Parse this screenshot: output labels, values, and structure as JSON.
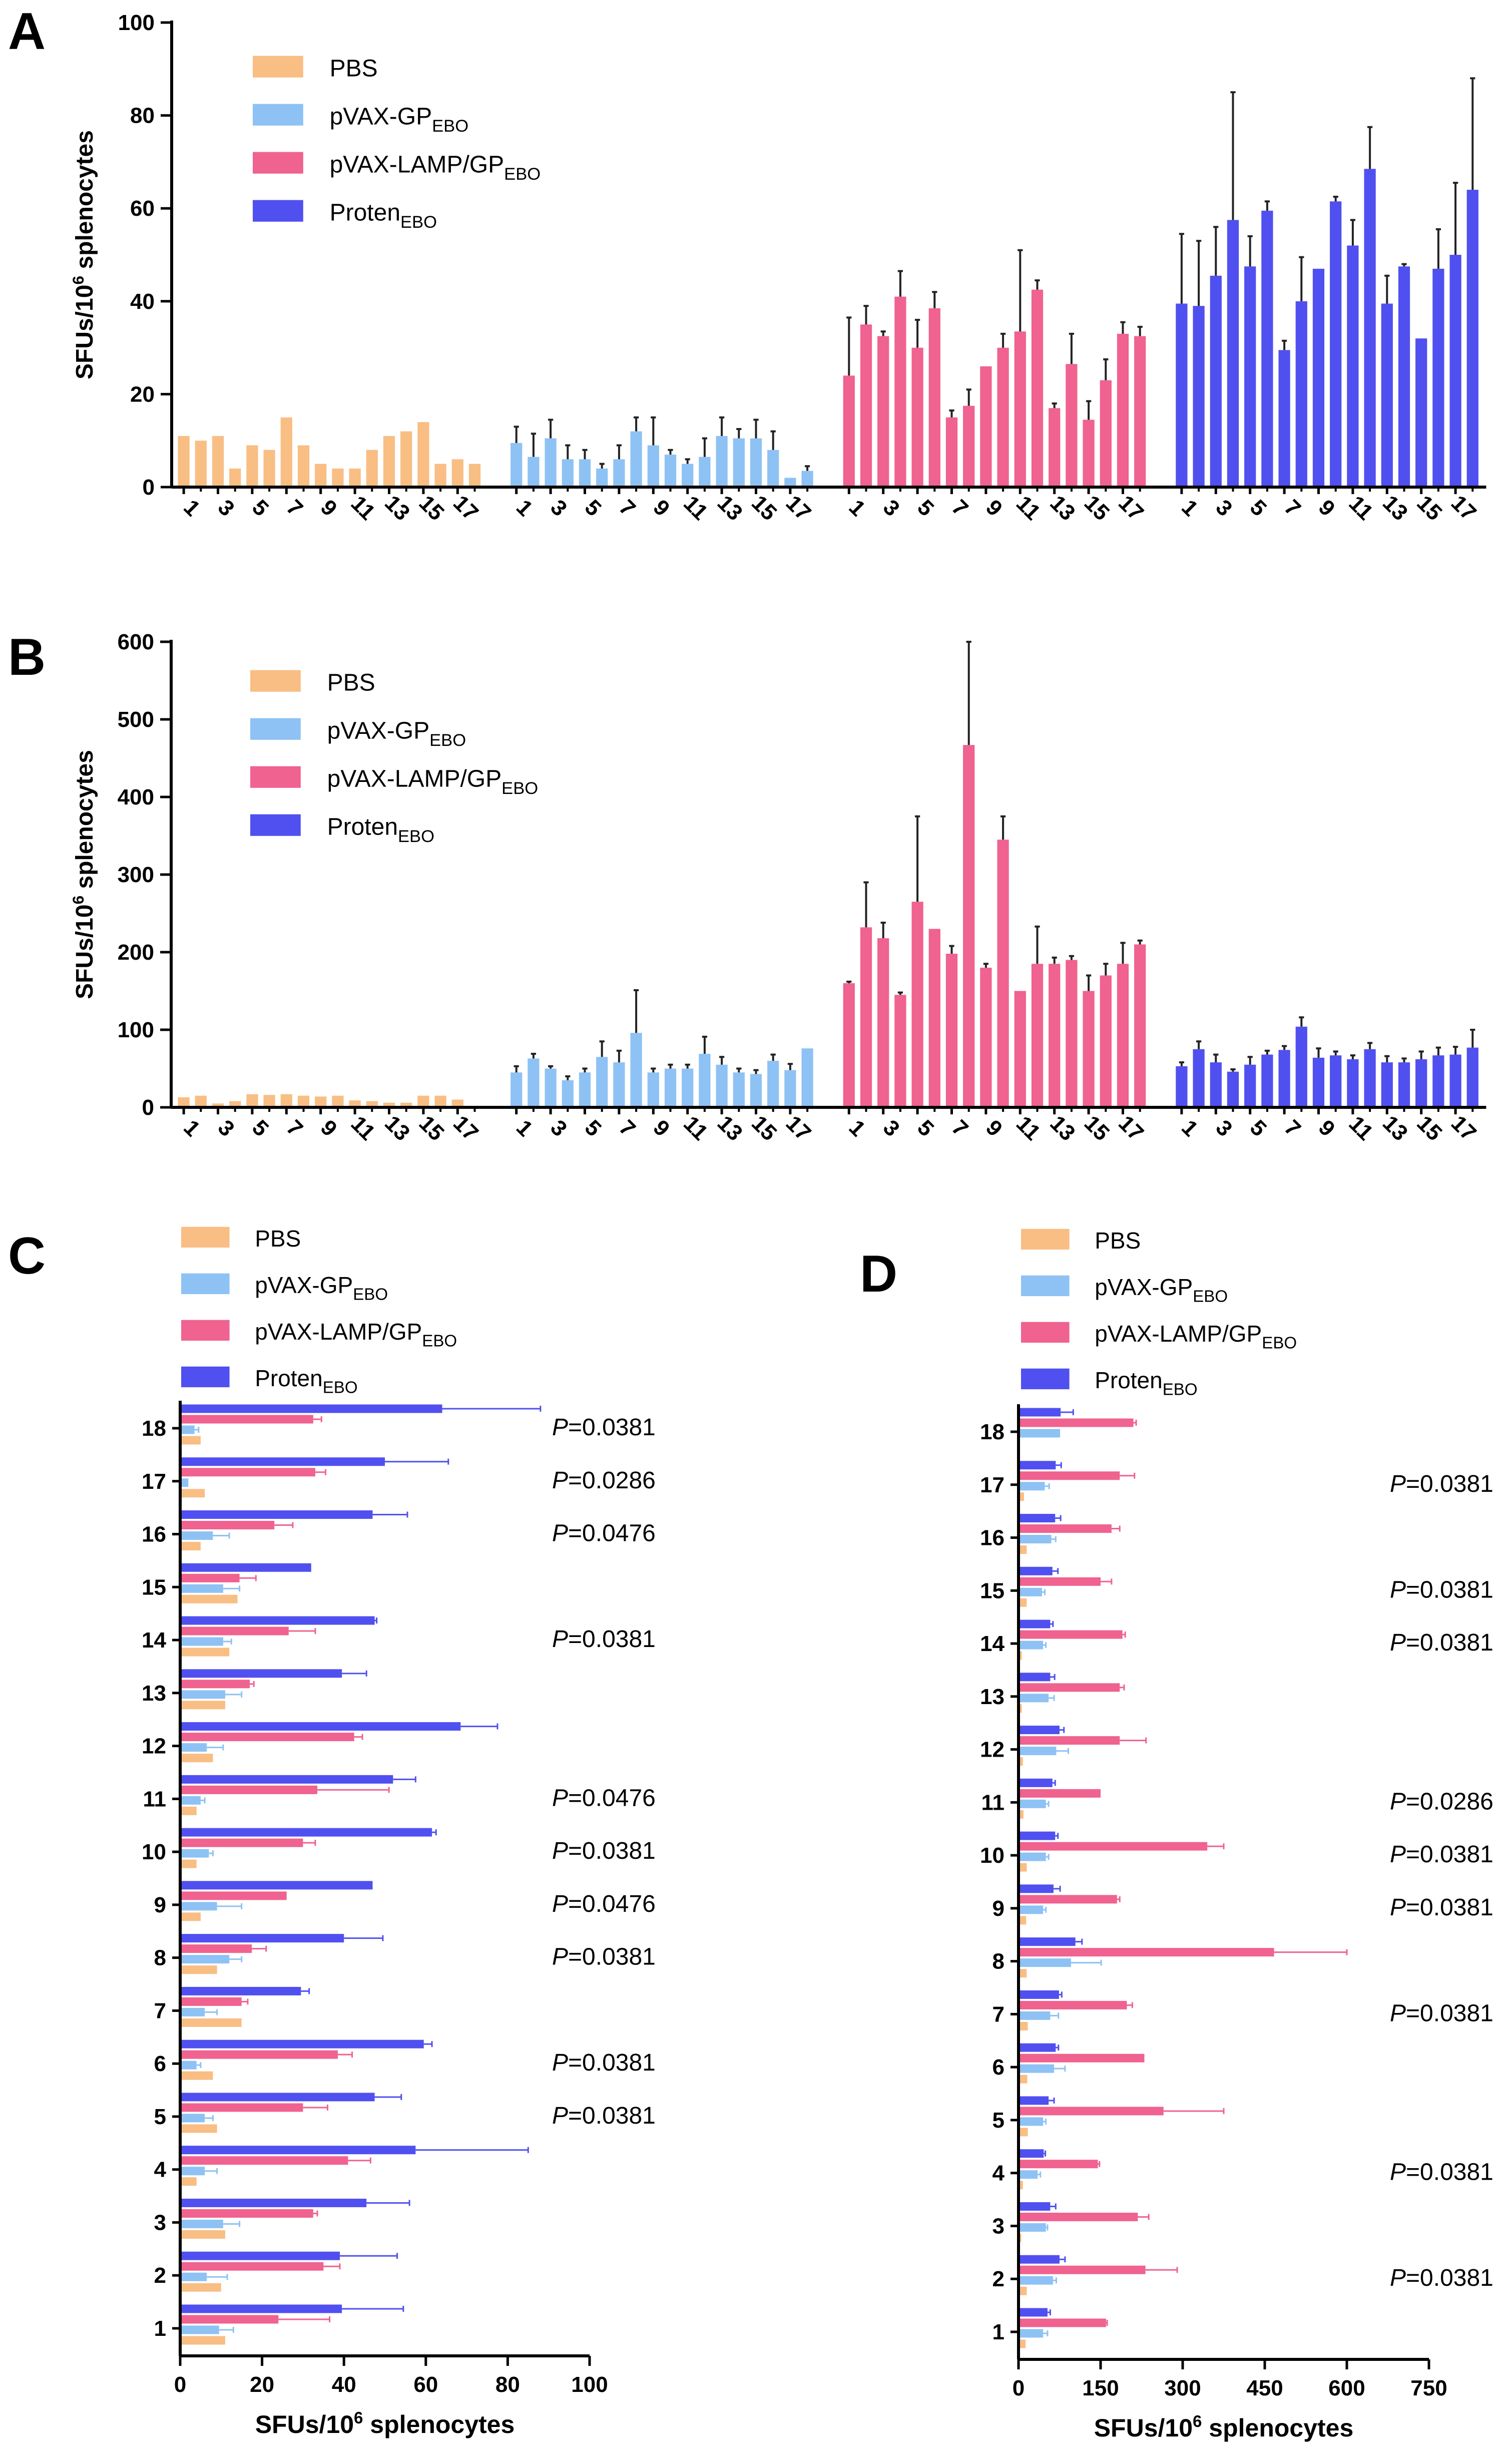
{
  "figure": {
    "colors": {
      "pbs": "#F9BE84",
      "gp": "#8EC2F4",
      "lamp": "#F0628F",
      "proten": "#5050F0",
      "axis": "#000000"
    },
    "legend": [
      {
        "key": "pbs",
        "main": "PBS",
        "sub": ""
      },
      {
        "key": "gp",
        "main": "pVAX-GP",
        "sub": "EBO"
      },
      {
        "key": "lamp",
        "main": "pVAX-LAMP/GP",
        "sub": "EBO"
      },
      {
        "key": "proten",
        "main": "Proten",
        "sub": "EBO"
      }
    ]
  },
  "chart_data": [
    {
      "panel": "A",
      "type": "bar",
      "ylabel": {
        "main": "SFUs/10",
        "sup": "6",
        "tail": " splenocytes"
      },
      "ylim": [
        0,
        100
      ],
      "yticks": [
        "0",
        "20",
        "40",
        "60",
        "80",
        "100"
      ],
      "xtick_labels": [
        "1",
        "3",
        "5",
        "7",
        "9",
        "11",
        "13",
        "15",
        "17"
      ],
      "groups": [
        {
          "name": "PBS",
          "values": [
            11,
            10,
            11,
            4,
            9,
            8,
            15,
            9,
            5,
            4,
            4,
            8,
            11,
            12,
            14,
            5,
            6,
            5
          ],
          "errors": [
            0,
            0,
            0,
            0,
            0,
            0,
            0,
            0,
            0,
            0,
            0,
            0,
            0,
            0,
            0,
            0,
            0,
            0
          ]
        },
        {
          "name": "pVAX-GP",
          "values": [
            9.5,
            6.5,
            10.5,
            6,
            6,
            4,
            6,
            12,
            9,
            7,
            5,
            6.5,
            11,
            10.5,
            10.5,
            8,
            2,
            3.5
          ],
          "errors": [
            3.5,
            5,
            4,
            3,
            2,
            1,
            3,
            3,
            6,
            1,
            1,
            4,
            4,
            2,
            4,
            4,
            0,
            1
          ]
        },
        {
          "name": "pVAX-LAMP/GP",
          "values": [
            24,
            35,
            32.5,
            41,
            30,
            38.5,
            15,
            17.5,
            26,
            30,
            33.5,
            42.5,
            17,
            26.5,
            14.5,
            23,
            33,
            32.5
          ],
          "errors": [
            12.5,
            4,
            1,
            5.5,
            6,
            3.5,
            1.5,
            3.5,
            0,
            3,
            17.5,
            2,
            1,
            6.5,
            4,
            4.5,
            2.5,
            2
          ]
        },
        {
          "name": "Proten",
          "values": [
            39.5,
            39,
            45.5,
            57.5,
            47.5,
            59.5,
            29.5,
            40,
            47,
            61.5,
            52,
            68.5,
            39.5,
            47.5,
            32,
            47,
            50,
            64
          ],
          "errors": [
            15,
            14,
            10.5,
            27.5,
            6.5,
            2,
            2,
            9.5,
            0,
            1,
            5.5,
            9,
            6,
            0.5,
            0,
            8.5,
            15.5,
            24
          ]
        }
      ]
    },
    {
      "panel": "B",
      "type": "bar",
      "ylabel": {
        "main": "SFUs/10",
        "sup": "6",
        "tail": " splenocytes"
      },
      "ylim": [
        0,
        600
      ],
      "yticks": [
        "0",
        "100",
        "200",
        "300",
        "400",
        "500",
        "600"
      ],
      "xtick_labels": [
        "1",
        "3",
        "5",
        "7",
        "9",
        "11",
        "13",
        "15",
        "17"
      ],
      "groups": [
        {
          "name": "PBS",
          "values": [
            13,
            15,
            5,
            8,
            17,
            16,
            17,
            15,
            14,
            15,
            9,
            8,
            6,
            6,
            15,
            15,
            10,
            0
          ],
          "errors": [
            0,
            0,
            0,
            0,
            0,
            0,
            0,
            0,
            0,
            0,
            0,
            0,
            0,
            0,
            0,
            0,
            0,
            0
          ]
        },
        {
          "name": "pVAX-GP",
          "values": [
            45,
            63,
            50,
            35,
            45,
            65,
            58,
            96,
            45,
            50,
            50,
            69,
            55,
            45,
            43,
            60,
            48,
            76
          ],
          "errors": [
            8,
            6,
            3,
            5,
            5,
            20,
            15,
            55,
            5,
            5,
            5,
            22,
            10,
            5,
            5,
            8,
            8,
            0
          ]
        },
        {
          "name": "pVAX-LAMP/GP",
          "values": [
            160,
            232,
            218,
            145,
            265,
            230,
            198,
            467,
            180,
            345,
            150,
            185,
            185,
            190,
            150,
            170,
            185,
            210
          ],
          "errors": [
            2,
            58,
            20,
            3,
            110,
            0,
            10,
            133,
            5,
            30,
            0,
            48,
            8,
            5,
            20,
            15,
            27,
            5
          ]
        },
        {
          "name": "Proten",
          "values": [
            53,
            75,
            58,
            46,
            55,
            68,
            74,
            104,
            64,
            67,
            62,
            75,
            58,
            58,
            62,
            67,
            68,
            77
          ],
          "errors": [
            5,
            10,
            10,
            3,
            10,
            5,
            5,
            12,
            12,
            5,
            5,
            8,
            8,
            5,
            10,
            10,
            10,
            23
          ]
        }
      ]
    },
    {
      "panel": "C",
      "type": "hbar",
      "xlabel": {
        "main": "SFUs/10",
        "sup": "6",
        "tail": " splenocytes"
      },
      "xlim": [
        0,
        100
      ],
      "xticks": [
        "0",
        "20",
        "40",
        "60",
        "80",
        "100"
      ],
      "ytick_labels": [
        "1",
        "2",
        "3",
        "4",
        "5",
        "6",
        "7",
        "8",
        "9",
        "10",
        "11",
        "12",
        "13",
        "14",
        "15",
        "16",
        "17",
        "18"
      ],
      "groups": [
        {
          "name": "PBS",
          "values": [
            11,
            10,
            11,
            4,
            9,
            8,
            15,
            9,
            5,
            4,
            4,
            8,
            11,
            12,
            14,
            5,
            6,
            5
          ],
          "errors": [
            0,
            0,
            0,
            0,
            0,
            0,
            0,
            0,
            0,
            0,
            0,
            0,
            0,
            0,
            0,
            0,
            0,
            0
          ]
        },
        {
          "name": "pVAX-GP",
          "values": [
            9.5,
            6.5,
            10.5,
            6,
            6,
            4,
            6,
            12,
            9,
            7,
            5,
            6.5,
            11,
            10.5,
            10.5,
            8,
            2,
            3.5
          ],
          "errors": [
            3.5,
            5,
            4,
            3,
            2,
            1,
            3,
            3,
            6,
            1,
            1,
            4,
            4,
            2,
            4,
            4,
            0,
            1
          ]
        },
        {
          "name": "pVAX-LAMP/GP",
          "values": [
            24,
            35,
            32.5,
            41,
            30,
            38.5,
            15,
            17.5,
            26,
            30,
            33.5,
            42.5,
            17,
            26.5,
            14.5,
            23,
            33,
            32.5
          ],
          "errors": [
            12.5,
            4,
            1,
            5.5,
            6,
            3.5,
            1.5,
            3.5,
            0,
            3,
            17.5,
            2,
            1,
            6.5,
            4,
            4.5,
            2.5,
            2
          ]
        },
        {
          "name": "Proten",
          "values": [
            39.5,
            39,
            45.5,
            57.5,
            47.5,
            59.5,
            29.5,
            40,
            47,
            61.5,
            52,
            68.5,
            39.5,
            47.5,
            32,
            47,
            50,
            64
          ],
          "errors": [
            15,
            14,
            10.5,
            27.5,
            6.5,
            2,
            2,
            9.5,
            0,
            1,
            5.5,
            9,
            6,
            0.5,
            0,
            8.5,
            15.5,
            24
          ]
        }
      ],
      "annotations": [
        {
          "row": 18,
          "prefix": "P",
          "value": "=0.0381"
        },
        {
          "row": 17,
          "prefix": "P",
          "value": "=0.0286"
        },
        {
          "row": 16,
          "prefix": "P",
          "value": "=0.0476"
        },
        {
          "row": 14,
          "prefix": "P",
          "value": "=0.0381"
        },
        {
          "row": 11,
          "prefix": "P",
          "value": "=0.0476"
        },
        {
          "row": 10,
          "prefix": "P",
          "value": "=0.0381"
        },
        {
          "row": 9,
          "prefix": "P",
          "value": "=0.0476"
        },
        {
          "row": 8,
          "prefix": "P",
          "value": "=0.0381"
        },
        {
          "row": 6,
          "prefix": "P",
          "value": "=0.0381"
        },
        {
          "row": 5,
          "prefix": "P",
          "value": "=0.0381"
        }
      ]
    },
    {
      "panel": "D",
      "type": "hbar",
      "xlabel": {
        "main": "SFUs/10",
        "sup": "6",
        "tail": " splenocytes"
      },
      "xlim": [
        0,
        750
      ],
      "xticks": [
        "0",
        "150",
        "300",
        "450",
        "600",
        "750"
      ],
      "ytick_labels": [
        "1",
        "2",
        "3",
        "4",
        "5",
        "6",
        "7",
        "8",
        "9",
        "10",
        "11",
        "12",
        "13",
        "14",
        "15",
        "16",
        "17",
        "18"
      ],
      "groups": [
        {
          "name": "PBS",
          "values": [
            13,
            15,
            5,
            8,
            17,
            16,
            17,
            15,
            14,
            15,
            9,
            8,
            6,
            6,
            15,
            15,
            10,
            0
          ],
          "errors": [
            0,
            0,
            0,
            0,
            0,
            0,
            0,
            0,
            0,
            0,
            0,
            0,
            0,
            0,
            0,
            0,
            0,
            0
          ]
        },
        {
          "name": "pVAX-GP",
          "values": [
            45,
            63,
            50,
            35,
            45,
            65,
            58,
            96,
            45,
            50,
            50,
            69,
            55,
            45,
            43,
            60,
            48,
            76
          ],
          "errors": [
            8,
            6,
            3,
            5,
            5,
            20,
            15,
            55,
            5,
            5,
            5,
            22,
            10,
            5,
            5,
            8,
            8,
            0
          ]
        },
        {
          "name": "pVAX-LAMP/GP",
          "values": [
            160,
            232,
            218,
            145,
            265,
            230,
            198,
            467,
            180,
            345,
            150,
            185,
            185,
            190,
            150,
            170,
            185,
            210
          ],
          "errors": [
            2,
            58,
            20,
            3,
            110,
            0,
            10,
            133,
            5,
            30,
            0,
            48,
            8,
            5,
            20,
            15,
            27,
            5
          ]
        },
        {
          "name": "Proten",
          "values": [
            53,
            75,
            58,
            46,
            55,
            68,
            74,
            104,
            64,
            67,
            62,
            75,
            58,
            58,
            62,
            67,
            68,
            77
          ],
          "errors": [
            5,
            10,
            10,
            3,
            10,
            5,
            5,
            12,
            12,
            5,
            5,
            8,
            8,
            5,
            10,
            10,
            10,
            23
          ]
        }
      ],
      "annotations": [
        {
          "row": 17,
          "prefix": "P",
          "value": "=0.0381"
        },
        {
          "row": 15,
          "prefix": "P",
          "value": "=0.0381"
        },
        {
          "row": 14,
          "prefix": "P",
          "value": "=0.0381"
        },
        {
          "row": 11,
          "prefix": "P",
          "value": "=0.0286"
        },
        {
          "row": 10,
          "prefix": "P",
          "value": "=0.0381"
        },
        {
          "row": 9,
          "prefix": "P",
          "value": "=0.0381"
        },
        {
          "row": 7,
          "prefix": "P",
          "value": "=0.0381"
        },
        {
          "row": 4,
          "prefix": "P",
          "value": "=0.0381"
        },
        {
          "row": 2,
          "prefix": "P",
          "value": "=0.0381"
        }
      ]
    }
  ]
}
